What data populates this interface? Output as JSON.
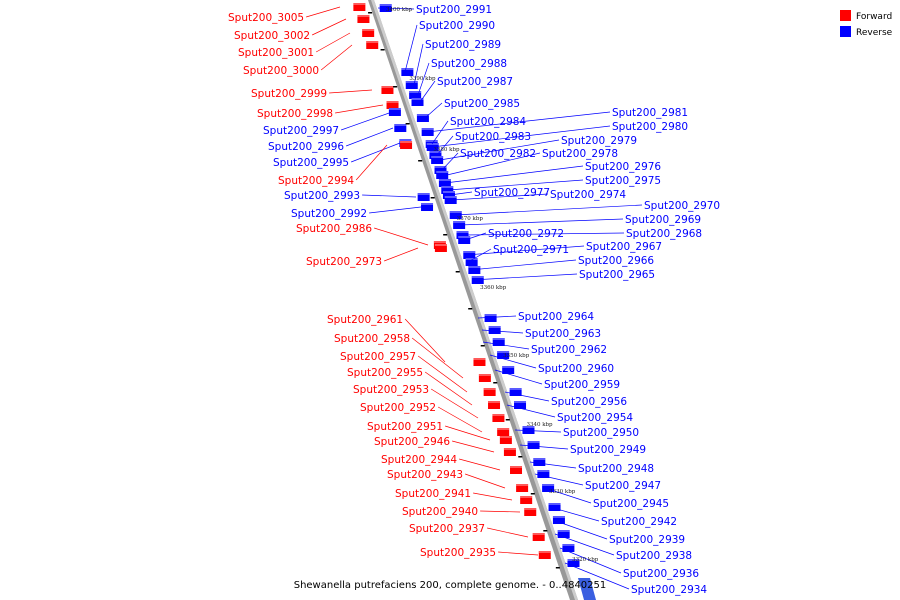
{
  "caption": "Shewanella putrefaciens 200, complete genome. - 0..4840251",
  "legend": {
    "forward_label": "Forward",
    "reverse_label": "Reverse",
    "forward_color": "#ff0000",
    "reverse_color": "#0000ff"
  },
  "axis_ticks": [
    "3400 kbp",
    "3390 kbp",
    "3380 kbp",
    "3370 kbp",
    "3360 kbp",
    "3350 kbp",
    "3340 kbp",
    "3330 kbp",
    "3320 kbp"
  ],
  "left_labels": [
    {
      "name": "Sput200_3005",
      "strand": "forward"
    },
    {
      "name": "Sput200_3002",
      "strand": "forward"
    },
    {
      "name": "Sput200_3001",
      "strand": "forward"
    },
    {
      "name": "Sput200_3000",
      "strand": "forward"
    },
    {
      "name": "Sput200_2999",
      "strand": "forward"
    },
    {
      "name": "Sput200_2998",
      "strand": "forward"
    },
    {
      "name": "Sput200_2997",
      "strand": "reverse"
    },
    {
      "name": "Sput200_2996",
      "strand": "reverse"
    },
    {
      "name": "Sput200_2995",
      "strand": "reverse"
    },
    {
      "name": "Sput200_2994",
      "strand": "forward"
    },
    {
      "name": "Sput200_2993",
      "strand": "reverse"
    },
    {
      "name": "Sput200_2992",
      "strand": "reverse"
    },
    {
      "name": "Sput200_2986",
      "strand": "forward"
    },
    {
      "name": "Sput200_2973",
      "strand": "forward"
    },
    {
      "name": "Sput200_2961",
      "strand": "forward"
    },
    {
      "name": "Sput200_2958",
      "strand": "forward"
    },
    {
      "name": "Sput200_2957",
      "strand": "forward"
    },
    {
      "name": "Sput200_2955",
      "strand": "forward"
    },
    {
      "name": "Sput200_2953",
      "strand": "forward"
    },
    {
      "name": "Sput200_2952",
      "strand": "forward"
    },
    {
      "name": "Sput200_2951",
      "strand": "forward"
    },
    {
      "name": "Sput200_2946",
      "strand": "forward"
    },
    {
      "name": "Sput200_2944",
      "strand": "forward"
    },
    {
      "name": "Sput200_2943",
      "strand": "forward"
    },
    {
      "name": "Sput200_2941",
      "strand": "forward"
    },
    {
      "name": "Sput200_2940",
      "strand": "forward"
    },
    {
      "name": "Sput200_2937",
      "strand": "forward"
    },
    {
      "name": "Sput200_2935",
      "strand": "forward"
    }
  ],
  "right_labels": [
    {
      "name": "Sput200_2991",
      "strand": "reverse"
    },
    {
      "name": "Sput200_2990",
      "strand": "reverse"
    },
    {
      "name": "Sput200_2989",
      "strand": "reverse"
    },
    {
      "name": "Sput200_2988",
      "strand": "reverse"
    },
    {
      "name": "Sput200_2987",
      "strand": "reverse"
    },
    {
      "name": "Sput200_2985",
      "strand": "reverse"
    },
    {
      "name": "Sput200_2981",
      "strand": "reverse"
    },
    {
      "name": "Sput200_2984",
      "strand": "reverse"
    },
    {
      "name": "Sput200_2980",
      "strand": "reverse"
    },
    {
      "name": "Sput200_2983",
      "strand": "reverse"
    },
    {
      "name": "Sput200_2979",
      "strand": "reverse"
    },
    {
      "name": "Sput200_2982",
      "strand": "reverse"
    },
    {
      "name": "Sput200_2978",
      "strand": "reverse"
    },
    {
      "name": "Sput200_2976",
      "strand": "reverse"
    },
    {
      "name": "Sput200_2975",
      "strand": "reverse"
    },
    {
      "name": "Sput200_2977",
      "strand": "reverse"
    },
    {
      "name": "Sput200_2974",
      "strand": "reverse"
    },
    {
      "name": "Sput200_2970",
      "strand": "reverse"
    },
    {
      "name": "Sput200_2969",
      "strand": "reverse"
    },
    {
      "name": "Sput200_2968",
      "strand": "reverse"
    },
    {
      "name": "Sput200_2972",
      "strand": "reverse"
    },
    {
      "name": "Sput200_2967",
      "strand": "reverse"
    },
    {
      "name": "Sput200_2971",
      "strand": "reverse"
    },
    {
      "name": "Sput200_2966",
      "strand": "reverse"
    },
    {
      "name": "Sput200_2965",
      "strand": "reverse"
    },
    {
      "name": "Sput200_2964",
      "strand": "reverse"
    },
    {
      "name": "Sput200_2963",
      "strand": "reverse"
    },
    {
      "name": "Sput200_2962",
      "strand": "reverse"
    },
    {
      "name": "Sput200_2960",
      "strand": "reverse"
    },
    {
      "name": "Sput200_2959",
      "strand": "reverse"
    },
    {
      "name": "Sput200_2956",
      "strand": "reverse"
    },
    {
      "name": "Sput200_2954",
      "strand": "reverse"
    },
    {
      "name": "Sput200_2950",
      "strand": "reverse"
    },
    {
      "name": "Sput200_2949",
      "strand": "reverse"
    },
    {
      "name": "Sput200_2948",
      "strand": "reverse"
    },
    {
      "name": "Sput200_2947",
      "strand": "reverse"
    },
    {
      "name": "Sput200_2945",
      "strand": "reverse"
    },
    {
      "name": "Sput200_2942",
      "strand": "reverse"
    },
    {
      "name": "Sput200_2939",
      "strand": "reverse"
    },
    {
      "name": "Sput200_2938",
      "strand": "reverse"
    },
    {
      "name": "Sput200_2936",
      "strand": "reverse"
    },
    {
      "name": "Sput200_2934",
      "strand": "reverse"
    }
  ]
}
